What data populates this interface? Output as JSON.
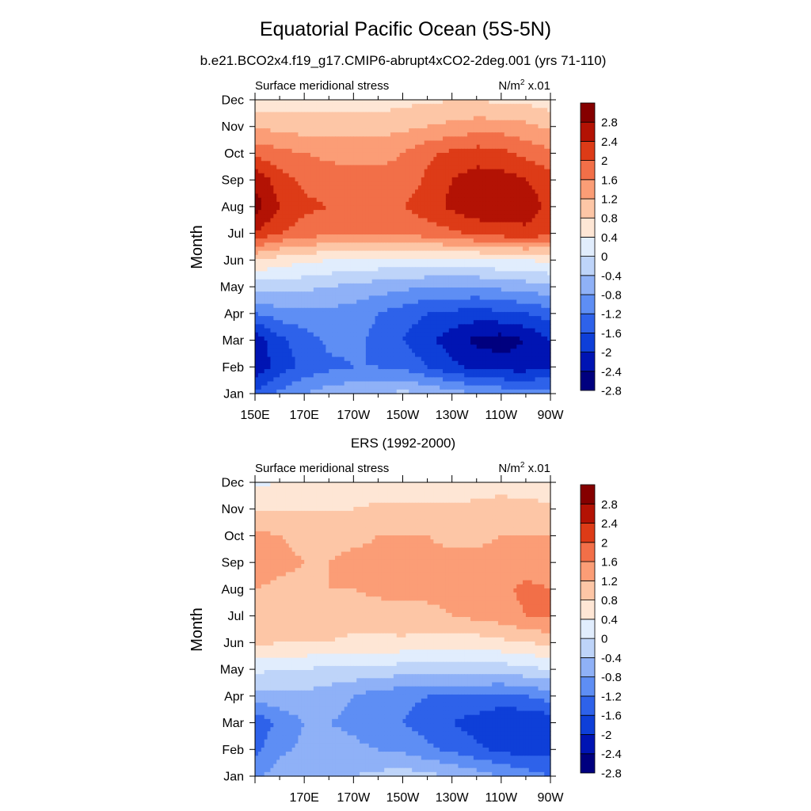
{
  "figure": {
    "title": "Equatorial Pacific Ocean (5S-5N)",
    "colors": [
      "#00007f",
      "#0014b3",
      "#0e3fd8",
      "#2e62ea",
      "#5e8ef4",
      "#8fb1f7",
      "#bed4f9",
      "#e1edfd",
      "#fee6d5",
      "#fdc6a6",
      "#fb9d76",
      "#f26f48",
      "#dd3b17",
      "#b31204",
      "#850000"
    ]
  },
  "chart_data": [
    {
      "type": "heatmap",
      "title": "b.e21.BCO2x4.f19_g17.CMIP6-abrupt4xCO2-2deg.001 (yrs 71-110)",
      "left_label": "Surface meridional stress",
      "right_label_base": "N/m",
      "right_label_sup": "2",
      "right_label_tail": " x.01",
      "ylabel": "Month",
      "xlim": [
        150,
        270
      ],
      "ylim": [
        1,
        12
      ],
      "x_tick_values": [
        150,
        170,
        190,
        210,
        230,
        250,
        270
      ],
      "x_tick_labels": [
        "150E",
        "170E",
        "170W",
        "150W",
        "130W",
        "110W",
        "90W"
      ],
      "y_tick_labels": [
        "Jan",
        "Feb",
        "Mar",
        "Apr",
        "May",
        "Jun",
        "Jul",
        "Aug",
        "Sep",
        "Oct",
        "Nov",
        "Dec"
      ],
      "levels": [
        -2.8,
        -2.4,
        -2,
        -1.6,
        -1.2,
        -0.8,
        -0.4,
        0,
        0.4,
        0.8,
        1.2,
        1.6,
        2,
        2.4,
        2.8
      ],
      "colorbar_labels": [
        "2.8",
        "2.4",
        "2",
        "1.6",
        "1.2",
        "0.8",
        "0.4",
        "0",
        "-0.4",
        "-0.8",
        "-1.2",
        "-1.6",
        "-2",
        "-2.4",
        "-2.8"
      ],
      "x": [
        150,
        160,
        170,
        180,
        190,
        200,
        210,
        220,
        230,
        240,
        250,
        260,
        270
      ],
      "y": [
        1,
        2,
        3,
        4,
        5,
        6,
        7,
        8,
        9,
        10,
        11,
        12
      ],
      "z": [
        [
          -1.9,
          -1.5,
          -1.2,
          -1.0,
          -0.9,
          -0.8,
          -0.7,
          -0.8,
          -1.0,
          -1.2,
          -1.3,
          -1.4,
          -1.4
        ],
        [
          -2.7,
          -2.2,
          -1.9,
          -1.7,
          -1.6,
          -1.6,
          -1.7,
          -2.0,
          -2.3,
          -2.5,
          -2.6,
          -2.6,
          -2.4
        ],
        [
          -2.7,
          -2.1,
          -1.8,
          -1.5,
          -1.5,
          -1.7,
          -2.0,
          -2.3,
          -2.6,
          -2.9,
          -3.0,
          -2.8,
          -2.4
        ],
        [
          -1.6,
          -1.4,
          -1.3,
          -1.3,
          -1.4,
          -1.6,
          -1.8,
          -2.0,
          -2.1,
          -2.2,
          -2.1,
          -2.0,
          -1.8
        ],
        [
          -0.6,
          -0.6,
          -0.7,
          -0.8,
          -0.9,
          -1.0,
          -1.1,
          -1.2,
          -1.2,
          -1.2,
          -1.1,
          -1.0,
          -0.9
        ],
        [
          0.4,
          0.2,
          0.1,
          0.0,
          0.0,
          -0.1,
          -0.1,
          -0.1,
          -0.1,
          -0.1,
          0.0,
          0.0,
          0.1
        ],
        [
          2.0,
          1.6,
          1.4,
          1.3,
          1.3,
          1.3,
          1.3,
          1.4,
          1.5,
          1.7,
          1.8,
          1.9,
          1.7
        ],
        [
          2.6,
          2.0,
          1.7,
          1.6,
          1.5,
          1.5,
          1.6,
          1.8,
          2.1,
          2.3,
          2.3,
          2.2,
          1.9
        ],
        [
          2.3,
          1.8,
          1.5,
          1.4,
          1.3,
          1.3,
          1.3,
          1.7,
          2.0,
          2.2,
          2.2,
          2.0,
          1.8
        ],
        [
          1.5,
          1.3,
          1.2,
          1.1,
          1.1,
          1.1,
          1.2,
          1.5,
          1.7,
          1.8,
          1.7,
          1.5,
          1.3
        ],
        [
          0.7,
          0.7,
          0.6,
          0.6,
          0.6,
          0.6,
          0.7,
          0.8,
          0.9,
          1.0,
          1.0,
          0.9,
          0.7
        ],
        [
          0.2,
          0.2,
          0.2,
          0.2,
          0.2,
          0.2,
          0.3,
          0.3,
          0.4,
          0.4,
          0.3,
          0.3,
          0.2
        ]
      ]
    },
    {
      "type": "heatmap",
      "title": "ERS (1992-2000)",
      "left_label": "Surface meridional stress",
      "right_label_base": "N/m",
      "right_label_sup": "2",
      "right_label_tail": " x.01",
      "ylabel": "Month",
      "xlim": [
        150,
        270
      ],
      "ylim": [
        1,
        12
      ],
      "x_tick_values": [
        170,
        190,
        210,
        230,
        250,
        270
      ],
      "x_tick_labels": [
        "170E",
        "170W",
        "150W",
        "130W",
        "110W",
        "90W"
      ],
      "y_tick_labels": [
        "Jan",
        "Feb",
        "Mar",
        "Apr",
        "May",
        "Jun",
        "Jul",
        "Aug",
        "Sep",
        "Oct",
        "Nov",
        "Dec"
      ],
      "levels": [
        -2.8,
        -2.4,
        -2,
        -1.6,
        -1.2,
        -0.8,
        -0.4,
        0,
        0.4,
        0.8,
        1.2,
        1.6,
        2,
        2.4,
        2.8
      ],
      "colorbar_labels": [
        "2.8",
        "2.4",
        "2",
        "1.6",
        "1.2",
        "0.8",
        "0.4",
        "0",
        "-0.4",
        "-0.8",
        "-1.2",
        "-1.6",
        "-2",
        "-2.4",
        "-2.8"
      ],
      "x": [
        150,
        160,
        170,
        180,
        190,
        200,
        210,
        220,
        230,
        240,
        250,
        260,
        270
      ],
      "y": [
        1,
        2,
        3,
        4,
        5,
        6,
        7,
        8,
        9,
        10,
        11,
        12
      ],
      "z": [
        [
          -1.3,
          -1.0,
          -0.9,
          -0.8,
          -0.8,
          -0.7,
          -0.6,
          -0.7,
          -0.8,
          -1.0,
          -1.2,
          -1.4,
          -1.6
        ],
        [
          -1.7,
          -1.3,
          -1.1,
          -1.0,
          -1.1,
          -1.2,
          -1.3,
          -1.5,
          -1.7,
          -1.9,
          -2.1,
          -2.2,
          -2.1
        ],
        [
          -1.9,
          -1.5,
          -1.2,
          -1.2,
          -1.3,
          -1.5,
          -1.6,
          -1.8,
          -2.0,
          -2.2,
          -2.4,
          -2.4,
          -2.3
        ],
        [
          -1.0,
          -0.9,
          -0.9,
          -1.0,
          -1.2,
          -1.4,
          -1.5,
          -1.6,
          -1.6,
          -1.6,
          -1.7,
          -1.6,
          -1.4
        ],
        [
          -0.3,
          -0.4,
          -0.4,
          -0.5,
          -0.5,
          -0.5,
          -0.6,
          -0.6,
          -0.6,
          -0.6,
          -0.6,
          -0.5,
          -0.4
        ],
        [
          0.5,
          0.4,
          0.4,
          0.4,
          0.3,
          0.3,
          0.3,
          0.2,
          0.2,
          0.2,
          0.3,
          0.4,
          0.5
        ],
        [
          0.7,
          0.6,
          0.6,
          0.6,
          0.6,
          0.6,
          0.7,
          0.7,
          0.8,
          0.9,
          1.0,
          1.2,
          1.3
        ],
        [
          0.8,
          0.7,
          0.7,
          0.8,
          0.8,
          0.9,
          0.9,
          0.9,
          0.9,
          1.0,
          1.1,
          1.3,
          1.2
        ],
        [
          1.1,
          0.9,
          0.8,
          0.8,
          0.9,
          0.9,
          0.9,
          0.9,
          0.9,
          0.9,
          1.0,
          1.0,
          0.9
        ],
        [
          0.9,
          0.8,
          0.7,
          0.7,
          0.7,
          0.8,
          0.8,
          0.8,
          0.7,
          0.7,
          0.8,
          0.8,
          0.8
        ],
        [
          0.4,
          0.4,
          0.4,
          0.4,
          0.4,
          0.5,
          0.5,
          0.5,
          0.5,
          0.5,
          0.6,
          0.6,
          0.5
        ],
        [
          -0.1,
          0.0,
          0.0,
          0.0,
          0.1,
          0.1,
          0.1,
          0.1,
          0.1,
          0.2,
          0.2,
          0.1,
          0.0
        ]
      ]
    }
  ]
}
